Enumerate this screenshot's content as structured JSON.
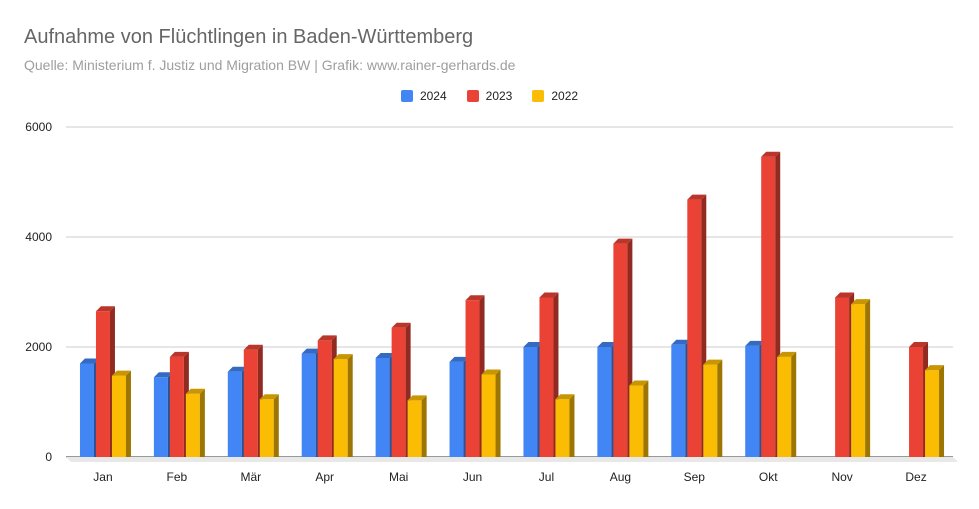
{
  "chart_data": {
    "type": "bar",
    "title": "Aufnahme von Flüchtlingen in Baden-Württemberg",
    "subtitle": "Quelle: Ministerium f. Justiz und Migration BW  |   Grafik: www.rainer-gerhards.de",
    "categories": [
      "Jan",
      "Feb",
      "Mär",
      "Apr",
      "Mai",
      "Jun",
      "Jul",
      "Aug",
      "Sep",
      "Okt",
      "Nov",
      "Dez"
    ],
    "series": [
      {
        "name": "2024",
        "color": "#4285f4",
        "values": [
          1700,
          1450,
          1550,
          1880,
          1800,
          1730,
          2000,
          2000,
          2040,
          2020,
          null,
          null
        ]
      },
      {
        "name": "2023",
        "color": "#ea4335",
        "values": [
          2650,
          1820,
          1950,
          2120,
          2350,
          2850,
          2900,
          3880,
          4680,
          5460,
          2900,
          2000
        ]
      },
      {
        "name": "2022",
        "color": "#fbbc04",
        "values": [
          1480,
          1150,
          1050,
          1780,
          1030,
          1500,
          1050,
          1300,
          1680,
          1820,
          2780,
          1580
        ]
      }
    ],
    "y_ticks": [
      "0",
      "2000",
      "4000",
      "6000"
    ],
    "ylim": [
      0,
      6000
    ],
    "grid": true,
    "legend_position": "top-center",
    "style": "3d-bar"
  }
}
